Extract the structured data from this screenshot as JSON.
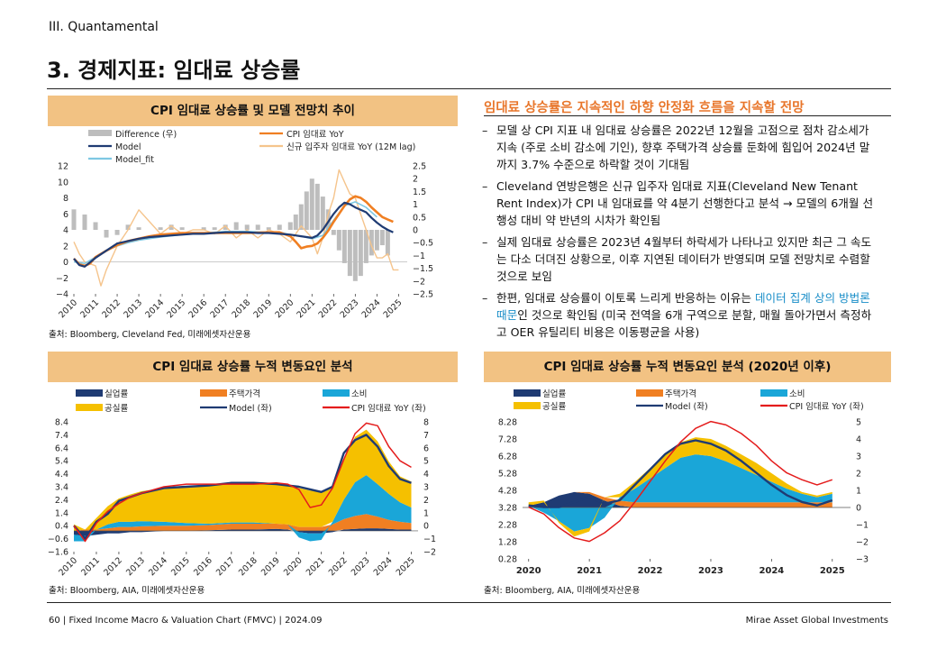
{
  "header": {
    "section": "III. Quantamental",
    "title": "3. 경제지표: 임대료 상승률"
  },
  "panel1": {
    "title": "CPI 임대료 상승률 및 모델 전망치 추이",
    "source": "출처: Bloomberg, Cleveland Fed, 미래에셋자산운용"
  },
  "panel2": {
    "title": "CPI 임대료 상승률 누적 변동요인 분석",
    "source": "출처: Bloomberg, AIA, 미래에셋자산운용"
  },
  "panel3": {
    "title": "CPI 임대료 상승률 누적 변동요인 분석 (2020년 이후)",
    "source": "출처: Bloomberg, AIA, 미래에셋자산운용"
  },
  "text": {
    "headline": "임대료 상승률은 지속적인 하향 안정화 흐름을 지속할 전망",
    "bullet1": "모델 상 CPI 지표 내 임대료 상승률은 2022년 12월을 고점으로 점차 감소세가 지속 (주로 소비 감소에 기인), 향후 주택가격 상승률 둔화에 힘입어 2024년 말까지 3.7% 수준으로 하락할 것이 기대됨",
    "bullet2": "Cleveland 연방은행은 신규 입주자 임대료 지표(Cleveland New Tenant Rent Index)가 CPI 내 임대료를 약 4분기 선행한다고 분석 → 모델의 6개월 선행성 대비 약 반년의 시차가 확인됨",
    "bullet3": "실제 임대료 상승률은 2023년 4월부터 하락세가 나타나고 있지만 최근 그 속도는 다소 더뎌진 상황으로, 이후 지연된 데이터가 반영되며 모델 전망치로 수렴할 것으로 보임",
    "bullet4_pre": "한편, 임대료 상승률이 이토록 느리게 반응하는 이유는 ",
    "bullet4_hl": "데이터 집계 상의 방법론 때문",
    "bullet4_post": "인 것으로 확인됨 (미국 전역을 6개 구역으로 분할, 매월 돌아가면서 측정하고 OER 유틸리티 비용은 이동평균을 사용)"
  },
  "footer": {
    "left": "60 | Fixed Income Macro & Valuation Chart (FMVC) | 2024.09",
    "right": "Mirae Asset Global Investments"
  },
  "chart_data": [
    {
      "type": "line",
      "title": "CPI 임대료 상승률 및 모델 전망치 추이",
      "x_ticks": [
        "2010",
        "2011",
        "2012",
        "2013",
        "2014",
        "2015",
        "2016",
        "2017",
        "2018",
        "2019",
        "2020",
        "2021",
        "2022",
        "2023",
        "2024",
        "2025"
      ],
      "y_left_ticks": [
        "12",
        "10",
        "8",
        "6",
        "4",
        "2",
        "0",
        "−2",
        "−4"
      ],
      "y_right_ticks": [
        "2.5",
        "2",
        "1.5",
        "1",
        "0.5",
        "0",
        "−0.5",
        "−1",
        "−1.5",
        "−2",
        "−2.5"
      ],
      "ylim_left": [
        -4,
        12
      ],
      "ylim_right": [
        -2.5,
        2.5
      ],
      "colors": {
        "Difference (우)": "#bdbdbd",
        "Model": "#1f3b73",
        "Model_fit": "#7ec8e3",
        "CPI 임대료 YoY": "#f07f22",
        "신규 입주자 임대료 YoY (12M lag)": "#f5c48c"
      },
      "series": [
        {
          "name": "Difference (우)",
          "axis": "right",
          "type": "bar",
          "x": [
            2010.0,
            2010.5,
            2011.0,
            2011.5,
            2012.0,
            2012.5,
            2013.0,
            2013.5,
            2014.0,
            2014.5,
            2015.0,
            2015.5,
            2016.0,
            2016.5,
            2017.0,
            2017.5,
            2018.0,
            2018.5,
            2019.0,
            2019.5,
            2020.0,
            2020.25,
            2020.5,
            2020.75,
            2021.0,
            2021.25,
            2021.5,
            2021.75,
            2022.0,
            2022.25,
            2022.5,
            2022.75,
            2023.0,
            2023.25,
            2023.5,
            2023.75,
            2024.0,
            2024.25,
            2024.5
          ],
          "values": [
            0.8,
            0.6,
            0.3,
            -0.3,
            -0.2,
            0.2,
            0.1,
            0.0,
            0.1,
            0.2,
            0.1,
            0.0,
            0.1,
            0.1,
            0.2,
            0.3,
            0.2,
            0.2,
            0.1,
            0.2,
            0.3,
            0.6,
            1.0,
            1.5,
            2.0,
            1.8,
            1.3,
            0.8,
            -0.2,
            -0.8,
            -1.3,
            -1.8,
            -2.0,
            -1.8,
            -1.3,
            -1.0,
            -0.8,
            -0.6,
            -1.0
          ]
        },
        {
          "name": "Model",
          "axis": "left",
          "x": [
            2010.0,
            2010.25,
            2010.5,
            2011.0,
            2011.5,
            2012.0,
            2012.5,
            2013.0,
            2013.5,
            2014.0,
            2014.5,
            2015.0,
            2015.5,
            2016.0,
            2016.5,
            2017.0,
            2017.5,
            2018.0,
            2018.5,
            2019.0,
            2019.5,
            2020.0,
            2020.5,
            2021.0,
            2021.25,
            2021.5,
            2021.75,
            2022.0,
            2022.25,
            2022.5,
            2022.75,
            2023.0,
            2023.25,
            2023.5,
            2023.75,
            2024.0,
            2024.25,
            2024.5,
            2024.75
          ],
          "values": [
            0.4,
            -0.4,
            -0.6,
            0.5,
            1.4,
            2.3,
            2.6,
            2.9,
            3.1,
            3.2,
            3.3,
            3.4,
            3.5,
            3.5,
            3.6,
            3.7,
            3.7,
            3.7,
            3.6,
            3.6,
            3.5,
            3.4,
            3.2,
            3.0,
            3.3,
            4.0,
            5.0,
            6.0,
            6.8,
            7.4,
            7.2,
            6.8,
            6.5,
            6.2,
            5.5,
            4.9,
            4.4,
            4.0,
            3.7
          ]
        },
        {
          "name": "Model_fit",
          "axis": "left",
          "x": [
            2010.0,
            2010.5,
            2011.0,
            2011.5,
            2012.0,
            2012.5,
            2013.0,
            2014.0,
            2015.0,
            2016.0,
            2017.0,
            2018.0,
            2019.0,
            2019.5,
            2020.0,
            2020.5,
            2021.0,
            2021.5,
            2022.0,
            2022.5,
            2023.0,
            2023.5,
            2024.0
          ],
          "values": [
            0.0,
            -0.2,
            0.6,
            1.4,
            2.0,
            2.4,
            2.7,
            3.1,
            3.4,
            3.6,
            3.8,
            3.8,
            3.7,
            3.7,
            3.4,
            3.2,
            2.9,
            3.3,
            5.2,
            7.0,
            7.5,
            6.8,
            5.6
          ]
        },
        {
          "name": "CPI 임대료 YoY",
          "axis": "left",
          "x": [
            2010.0,
            2010.25,
            2010.5,
            2010.75,
            2011.0,
            2011.5,
            2012.0,
            2012.5,
            2013.0,
            2013.5,
            2014.0,
            2015.0,
            2016.0,
            2017.0,
            2018.0,
            2019.0,
            2019.5,
            2020.0,
            2020.25,
            2020.5,
            2020.75,
            2021.0,
            2021.25,
            2021.5,
            2021.75,
            2022.0,
            2022.25,
            2022.5,
            2022.75,
            2023.0,
            2023.25,
            2023.5,
            2023.75,
            2024.0,
            2024.25,
            2024.5,
            2024.75
          ],
          "values": [
            0.4,
            -0.3,
            -0.5,
            -0.2,
            0.6,
            1.4,
            2.1,
            2.6,
            2.9,
            3.2,
            3.4,
            3.6,
            3.6,
            3.6,
            3.6,
            3.7,
            3.7,
            3.2,
            2.5,
            1.7,
            1.9,
            2.0,
            2.3,
            3.0,
            3.9,
            5.0,
            6.0,
            7.0,
            7.8,
            8.2,
            8.0,
            7.5,
            6.8,
            6.2,
            5.6,
            5.3,
            5.0
          ]
        },
        {
          "name": "신규 입주자 임대료 YoY (12M lag)",
          "axis": "left",
          "x": [
            2010.0,
            2010.25,
            2010.5,
            2011.0,
            2011.25,
            2011.5,
            2012.0,
            2012.5,
            2013.0,
            2013.5,
            2014.0,
            2014.5,
            2015.0,
            2015.5,
            2016.0,
            2016.5,
            2017.0,
            2017.5,
            2018.0,
            2018.5,
            2019.0,
            2019.5,
            2020.0,
            2020.5,
            2021.0,
            2021.25,
            2021.5,
            2021.75,
            2022.0,
            2022.25,
            2022.5,
            2022.75,
            2023.0,
            2023.25,
            2023.5,
            2023.75,
            2024.0,
            2024.25,
            2024.5,
            2024.75,
            2025.0
          ],
          "values": [
            2.5,
            1.0,
            0.0,
            -0.5,
            -3.0,
            -1.0,
            2.0,
            4.0,
            6.5,
            5.0,
            3.5,
            4.5,
            3.5,
            4.0,
            4.0,
            3.5,
            4.5,
            3.0,
            4.0,
            3.0,
            4.0,
            3.5,
            2.5,
            4.5,
            3.0,
            1.0,
            3.0,
            6.0,
            8.0,
            11.5,
            10.0,
            8.5,
            8.0,
            6.0,
            4.0,
            2.0,
            0.5,
            0.5,
            1.0,
            -1.0,
            -1.0
          ]
        }
      ]
    },
    {
      "type": "area",
      "title": "CPI 임대료 상승률 누적 변동요인 분석",
      "x_ticks": [
        "2010",
        "2011",
        "2012",
        "2013",
        "2014",
        "2015",
        "2016",
        "2017",
        "2018",
        "2019",
        "2020",
        "2021",
        "2022",
        "2023",
        "2024",
        "2025"
      ],
      "y_left_ticks": [
        "8.4",
        "7.4",
        "6.4",
        "5.4",
        "4.4",
        "3.4",
        "2.4",
        "1.4",
        "0.4",
        "−0.6",
        "−1.6"
      ],
      "y_right_ticks": [
        "8",
        "7",
        "6",
        "5",
        "4",
        "3",
        "2",
        "1",
        "0",
        "−1",
        "−2"
      ],
      "ylim_left": [
        -1.6,
        8.4
      ],
      "ylim_right": [
        -2,
        8
      ],
      "colors": {
        "실업률": "#1f3b73",
        "주택가격": "#f07f22",
        "소비": "#1aa6d8",
        "공실률": "#f5c000",
        "Model (좌)": "#1f3b73",
        "CPI 임대료 YoY (좌)": "#e41c1c"
      },
      "x": [
        2010.0,
        2010.5,
        2011.0,
        2011.5,
        2012.0,
        2012.5,
        2013.0,
        2014.0,
        2015.0,
        2016.0,
        2017.0,
        2018.0,
        2019.0,
        2019.5,
        2020.0,
        2020.5,
        2021.0,
        2021.5,
        2022.0,
        2022.5,
        2023.0,
        2023.5,
        2024.0,
        2024.5,
        2025.0
      ],
      "series": [
        {
          "name": "실업률",
          "values": [
            -0.3,
            -0.4,
            -0.3,
            -0.2,
            -0.2,
            -0.1,
            -0.1,
            0.0,
            0.0,
            0.05,
            0.1,
            0.1,
            0.15,
            0.1,
            -0.1,
            -0.2,
            -0.2,
            -0.1,
            0.1,
            0.15,
            0.2,
            0.2,
            0.15,
            0.1,
            0.1
          ]
        },
        {
          "name": "주택가격",
          "values": [
            0.0,
            0.1,
            0.1,
            0.2,
            0.3,
            0.3,
            0.35,
            0.4,
            0.4,
            0.4,
            0.45,
            0.45,
            0.4,
            0.4,
            0.3,
            0.3,
            0.3,
            0.5,
            0.8,
            1.0,
            1.1,
            0.9,
            0.7,
            0.6,
            0.5
          ]
        },
        {
          "name": "소비",
          "values": [
            -0.5,
            -0.4,
            0.0,
            0.3,
            0.4,
            0.4,
            0.4,
            0.3,
            0.2,
            0.1,
            0.1,
            0.1,
            0.0,
            0.0,
            -0.4,
            -0.6,
            -0.5,
            0.2,
            1.5,
            2.6,
            3.0,
            2.5,
            2.0,
            1.5,
            1.2
          ]
        },
        {
          "name": "공실률",
          "values": [
            0.5,
            0.0,
            0.9,
            1.4,
            1.8,
            2.1,
            2.3,
            2.6,
            2.8,
            2.9,
            3.0,
            3.0,
            3.0,
            3.0,
            3.0,
            2.8,
            2.7,
            2.6,
            3.1,
            3.5,
            3.5,
            3.3,
            2.5,
            2.0,
            2.0
          ]
        },
        {
          "name": "Model (좌)",
          "line": true,
          "values": [
            0.4,
            -0.6,
            0.7,
            1.3,
            2.3,
            2.6,
            2.9,
            3.3,
            3.4,
            3.5,
            3.7,
            3.7,
            3.6,
            3.5,
            3.4,
            3.2,
            3.0,
            3.4,
            6.0,
            7.0,
            7.4,
            6.5,
            5.0,
            4.0,
            3.7
          ]
        },
        {
          "name": "CPI 임대료 YoY (좌)",
          "line": true,
          "values": [
            0.4,
            -0.8,
            0.6,
            1.5,
            2.1,
            2.6,
            2.9,
            3.4,
            3.6,
            3.6,
            3.6,
            3.6,
            3.7,
            3.6,
            3.2,
            1.8,
            2.0,
            3.3,
            5.5,
            7.5,
            8.3,
            8.1,
            6.5,
            5.4,
            4.9
          ]
        }
      ]
    },
    {
      "type": "area",
      "title": "CPI 임대료 상승률 누적 변동요인 분석 (2020년 이후)",
      "x_ticks": [
        "2020",
        "2021",
        "2022",
        "2023",
        "2024",
        "2025"
      ],
      "y_left_ticks": [
        "8.28",
        "7.28",
        "6.28",
        "5.28",
        "4.28",
        "3.28",
        "2.28",
        "1.28",
        "0.28"
      ],
      "y_right_ticks": [
        "5",
        "4",
        "3",
        "2",
        "1",
        "0",
        "−1",
        "−2",
        "−3"
      ],
      "ylim_left": [
        0.28,
        8.28
      ],
      "ylim_right": [
        -3,
        5
      ],
      "baseline": 3.28,
      "colors": {
        "실업률": "#1f3b73",
        "주택가격": "#f07f22",
        "소비": "#1aa6d8",
        "공실률": "#f5c000",
        "Model (좌)": "#1f3b73",
        "CPI 임대료 YoY (좌)": "#e41c1c"
      },
      "x": [
        2020.0,
        2020.25,
        2020.5,
        2020.75,
        2021.0,
        2021.25,
        2021.5,
        2021.75,
        2022.0,
        2022.25,
        2022.5,
        2022.75,
        2023.0,
        2023.25,
        2023.5,
        2023.75,
        2024.0,
        2024.25,
        2024.5,
        2024.75,
        2025.0
      ],
      "series": [
        {
          "name": "실업률",
          "values": [
            0.1,
            0.3,
            0.7,
            0.9,
            0.8,
            0.4,
            0.1,
            0.0,
            0.0,
            0.0,
            0.0,
            0.0,
            0.0,
            0.0,
            0.0,
            0.0,
            0.0,
            0.0,
            0.0,
            0.0,
            0.0
          ]
        },
        {
          "name": "주택가격",
          "values": [
            0.0,
            0.0,
            0.0,
            0.0,
            0.1,
            0.2,
            0.3,
            0.3,
            0.3,
            0.3,
            0.3,
            0.3,
            0.3,
            0.3,
            0.3,
            0.3,
            0.3,
            0.3,
            0.3,
            0.3,
            0.3
          ]
        },
        {
          "name": "소비",
          "values": [
            0.0,
            -0.3,
            -0.8,
            -1.4,
            -1.2,
            -0.6,
            0.2,
            0.8,
            1.4,
            2.0,
            2.6,
            2.8,
            2.7,
            2.4,
            2.0,
            1.6,
            1.2,
            0.8,
            0.5,
            0.3,
            0.5
          ]
        },
        {
          "name": "공실률",
          "values": [
            0.2,
            0.1,
            -0.1,
            -0.3,
            -0.2,
            0.0,
            0.2,
            0.4,
            0.6,
            0.8,
            0.9,
            1.0,
            1.0,
            0.9,
            0.8,
            0.7,
            0.5,
            0.3,
            0.1,
            0.1,
            0.1
          ]
        },
        {
          "name": "Model (좌)",
          "line": true,
          "values": [
            3.4,
            3.3,
            3.3,
            3.6,
            3.9,
            3.5,
            3.7,
            4.6,
            5.5,
            6.4,
            7.0,
            7.2,
            7.0,
            6.6,
            6.0,
            5.3,
            4.6,
            4.0,
            3.6,
            3.4,
            3.7
          ]
        },
        {
          "name": "CPI 임대료 YoY (좌)",
          "line": true,
          "values": [
            3.3,
            2.9,
            2.1,
            1.5,
            1.3,
            1.8,
            2.5,
            3.6,
            4.8,
            6.0,
            7.1,
            7.9,
            8.3,
            8.1,
            7.6,
            6.9,
            6.0,
            5.3,
            4.9,
            4.6,
            4.9
          ]
        }
      ]
    }
  ]
}
